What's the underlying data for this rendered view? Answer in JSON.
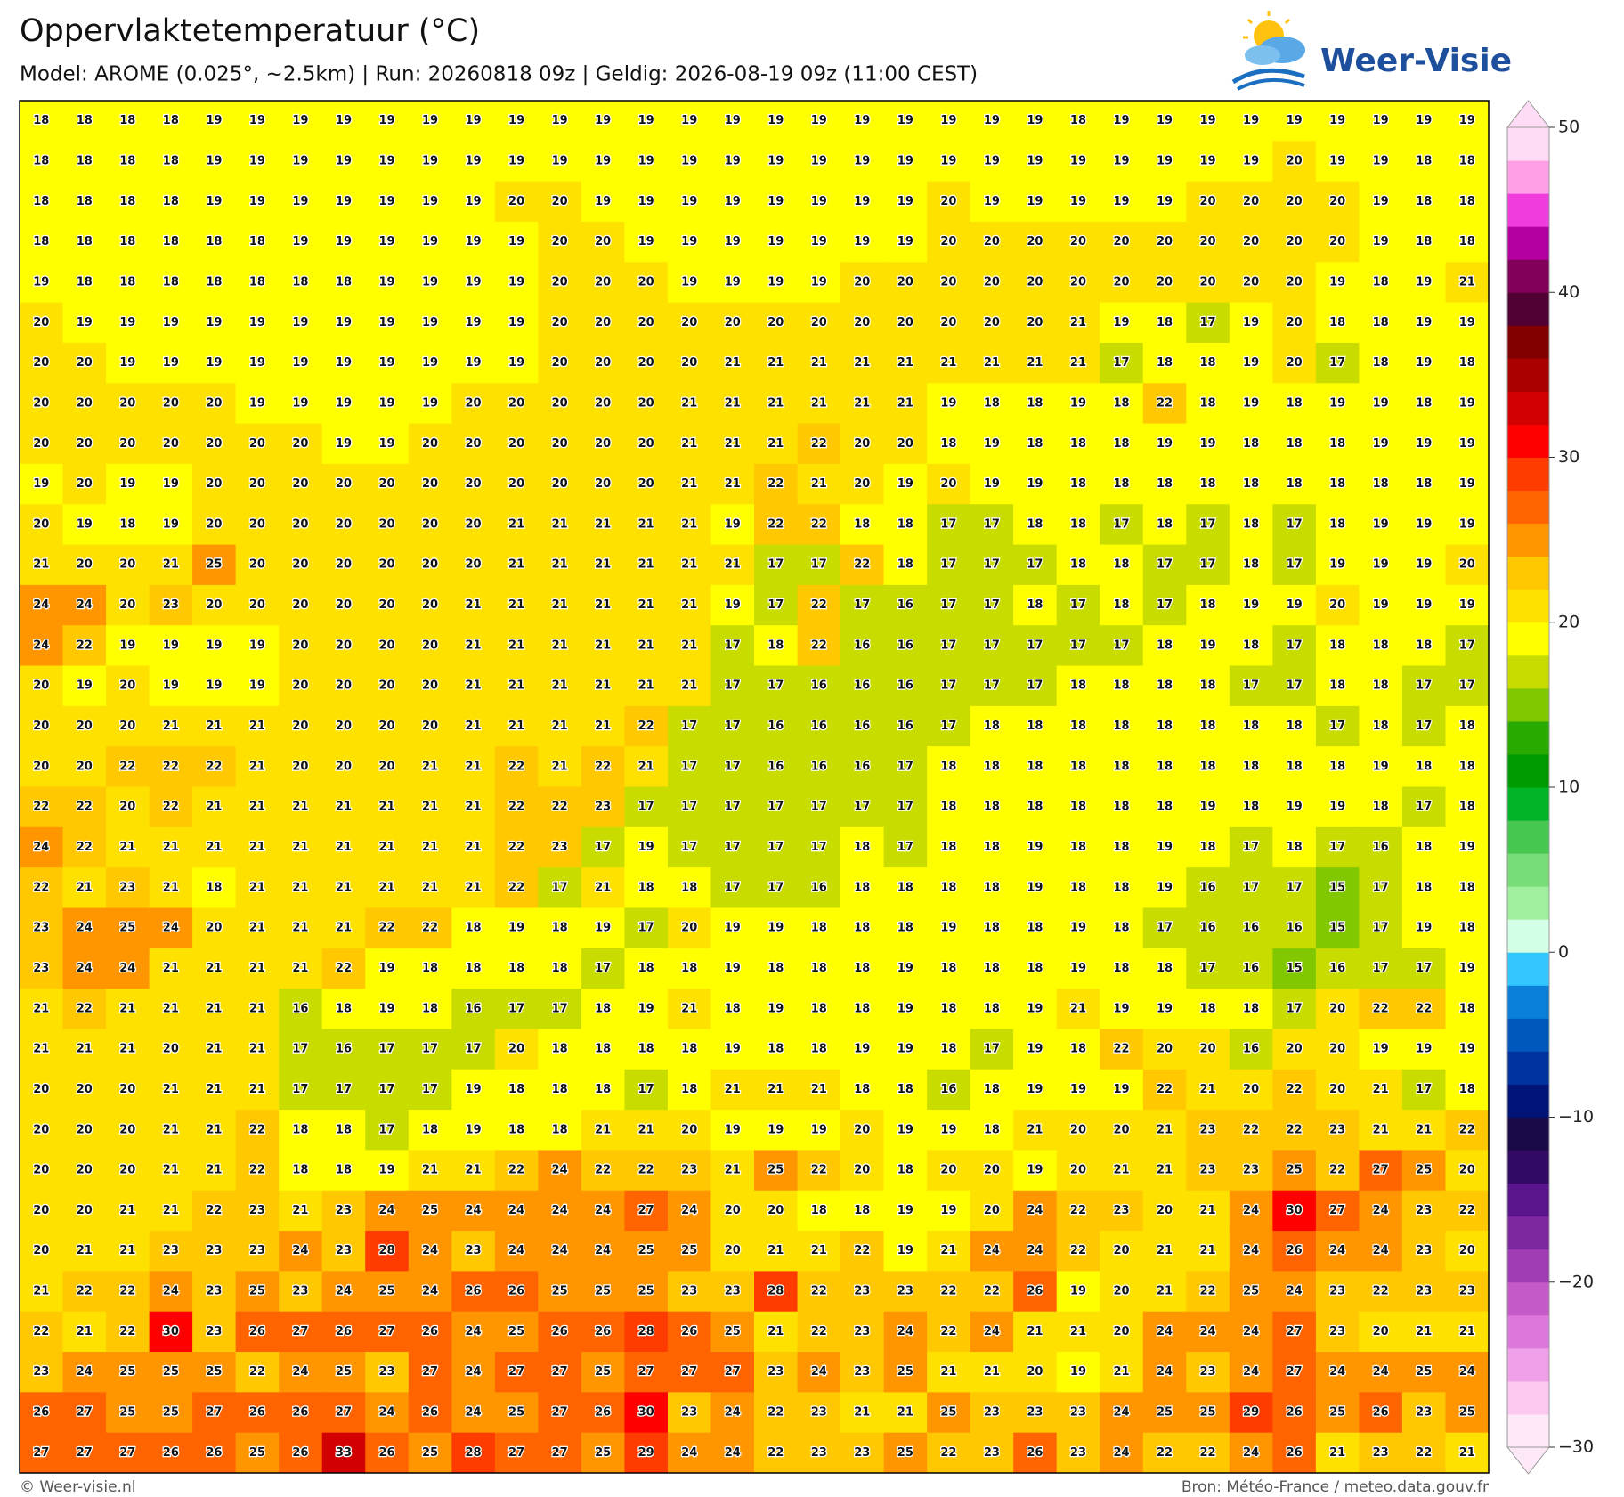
{
  "header": {
    "title": "Oppervlaktetemperatuur (°C)",
    "subtitle": "Model: AROME (0.025°, ~2.5km)  |  Run: 20260818 09z  |  Geldig: 2026-08-19 09z (11:00 CEST)"
  },
  "logo": {
    "text": "Weer-Visie"
  },
  "grid": {
    "rows": [
      [
        18,
        18,
        18,
        18,
        19,
        19,
        19,
        19,
        19,
        19,
        19,
        19,
        19,
        19,
        19,
        19,
        19,
        19,
        19,
        19,
        19,
        19,
        19,
        19,
        18,
        19,
        19,
        19,
        19,
        19,
        19,
        19,
        19,
        19
      ],
      [
        18,
        18,
        18,
        18,
        19,
        19,
        19,
        19,
        19,
        19,
        19,
        19,
        19,
        19,
        19,
        19,
        19,
        19,
        19,
        19,
        19,
        19,
        19,
        19,
        19,
        19,
        19,
        19,
        19,
        20,
        19,
        19,
        18,
        18
      ],
      [
        18,
        18,
        18,
        18,
        19,
        19,
        19,
        19,
        19,
        19,
        19,
        20,
        20,
        19,
        19,
        19,
        19,
        19,
        19,
        19,
        19,
        20,
        19,
        19,
        19,
        19,
        19,
        20,
        20,
        20,
        20,
        19,
        18,
        18
      ],
      [
        18,
        18,
        18,
        18,
        18,
        18,
        19,
        19,
        19,
        19,
        19,
        19,
        20,
        20,
        19,
        19,
        19,
        19,
        19,
        19,
        19,
        20,
        20,
        20,
        20,
        20,
        20,
        20,
        20,
        20,
        20,
        19,
        18,
        18
      ],
      [
        19,
        18,
        18,
        18,
        18,
        18,
        18,
        18,
        19,
        19,
        19,
        19,
        20,
        20,
        20,
        19,
        19,
        19,
        19,
        20,
        20,
        20,
        20,
        20,
        20,
        20,
        20,
        20,
        20,
        20,
        19,
        18,
        19,
        21
      ],
      [
        20,
        19,
        19,
        19,
        19,
        19,
        19,
        19,
        19,
        19,
        19,
        19,
        20,
        20,
        20,
        20,
        20,
        20,
        20,
        20,
        20,
        20,
        20,
        20,
        21,
        19,
        18,
        17,
        19,
        20,
        18,
        18,
        19,
        19
      ],
      [
        20,
        20,
        19,
        19,
        19,
        19,
        19,
        19,
        19,
        19,
        19,
        19,
        20,
        20,
        20,
        20,
        21,
        21,
        21,
        21,
        21,
        21,
        21,
        21,
        21,
        17,
        18,
        18,
        19,
        20,
        17,
        18,
        19,
        18
      ],
      [
        20,
        20,
        20,
        20,
        20,
        19,
        19,
        19,
        19,
        19,
        20,
        20,
        20,
        20,
        20,
        21,
        21,
        21,
        21,
        21,
        21,
        19,
        18,
        18,
        19,
        18,
        22,
        18,
        19,
        18,
        19,
        19,
        18,
        19
      ],
      [
        20,
        20,
        20,
        20,
        20,
        20,
        20,
        19,
        19,
        20,
        20,
        20,
        20,
        20,
        20,
        21,
        21,
        21,
        22,
        20,
        20,
        18,
        19,
        18,
        18,
        18,
        19,
        19,
        18,
        18,
        18,
        19,
        19,
        19
      ],
      [
        19,
        20,
        19,
        19,
        20,
        20,
        20,
        20,
        20,
        20,
        20,
        20,
        20,
        20,
        20,
        21,
        21,
        22,
        21,
        20,
        19,
        20,
        19,
        19,
        18,
        18,
        18,
        18,
        18,
        18,
        18,
        18,
        18,
        19
      ],
      [
        20,
        19,
        18,
        19,
        20,
        20,
        20,
        20,
        20,
        20,
        20,
        21,
        21,
        21,
        21,
        21,
        19,
        22,
        22,
        18,
        18,
        17,
        17,
        18,
        18,
        17,
        18,
        17,
        18,
        17,
        18,
        19,
        19,
        19
      ],
      [
        21,
        20,
        20,
        21,
        25,
        20,
        20,
        20,
        20,
        20,
        20,
        21,
        21,
        21,
        21,
        21,
        21,
        17,
        17,
        22,
        18,
        17,
        17,
        17,
        18,
        18,
        17,
        17,
        18,
        17,
        19,
        19,
        19,
        20
      ],
      [
        24,
        24,
        20,
        23,
        20,
        20,
        20,
        20,
        20,
        20,
        21,
        21,
        21,
        21,
        21,
        21,
        19,
        17,
        22,
        17,
        16,
        17,
        17,
        18,
        17,
        18,
        17,
        18,
        19,
        19,
        20,
        19,
        19,
        19
      ],
      [
        24,
        22,
        19,
        19,
        19,
        19,
        20,
        20,
        20,
        20,
        21,
        21,
        21,
        21,
        21,
        21,
        17,
        18,
        22,
        16,
        16,
        17,
        17,
        17,
        17,
        17,
        18,
        19,
        18,
        17,
        18,
        18,
        18,
        17
      ],
      [
        20,
        19,
        20,
        19,
        19,
        19,
        20,
        20,
        20,
        20,
        21,
        21,
        21,
        21,
        21,
        21,
        17,
        17,
        16,
        16,
        16,
        17,
        17,
        17,
        18,
        18,
        18,
        18,
        17,
        17,
        18,
        18,
        17,
        17
      ],
      [
        20,
        20,
        20,
        21,
        21,
        21,
        20,
        20,
        20,
        20,
        21,
        21,
        21,
        21,
        22,
        17,
        17,
        16,
        16,
        16,
        16,
        17,
        18,
        18,
        18,
        18,
        18,
        18,
        18,
        18,
        17,
        18,
        17,
        18
      ],
      [
        20,
        20,
        22,
        22,
        22,
        21,
        20,
        20,
        20,
        21,
        21,
        22,
        21,
        22,
        21,
        17,
        17,
        16,
        16,
        16,
        17,
        18,
        18,
        18,
        18,
        18,
        18,
        18,
        18,
        18,
        18,
        19,
        18,
        18
      ],
      [
        22,
        22,
        20,
        22,
        21,
        21,
        21,
        21,
        21,
        21,
        21,
        22,
        22,
        23,
        17,
        17,
        17,
        17,
        17,
        17,
        17,
        18,
        18,
        18,
        18,
        18,
        18,
        19,
        18,
        19,
        19,
        18,
        17,
        18
      ],
      [
        24,
        22,
        21,
        21,
        21,
        21,
        21,
        21,
        21,
        21,
        21,
        22,
        23,
        17,
        19,
        17,
        17,
        17,
        17,
        18,
        17,
        18,
        18,
        19,
        18,
        18,
        19,
        18,
        17,
        18,
        17,
        16,
        18,
        19
      ],
      [
        22,
        21,
        23,
        21,
        18,
        21,
        21,
        21,
        21,
        21,
        21,
        22,
        17,
        21,
        18,
        18,
        17,
        17,
        16,
        18,
        18,
        18,
        18,
        19,
        18,
        18,
        19,
        16,
        17,
        17,
        15,
        17,
        18,
        18
      ],
      [
        23,
        24,
        25,
        24,
        20,
        21,
        21,
        21,
        22,
        22,
        18,
        19,
        18,
        19,
        17,
        20,
        19,
        19,
        18,
        18,
        18,
        19,
        18,
        18,
        19,
        18,
        17,
        16,
        16,
        16,
        15,
        17,
        19,
        18
      ],
      [
        23,
        24,
        24,
        21,
        21,
        21,
        21,
        22,
        19,
        18,
        18,
        18,
        18,
        17,
        18,
        18,
        19,
        18,
        18,
        18,
        19,
        18,
        18,
        18,
        19,
        18,
        18,
        17,
        16,
        15,
        16,
        17,
        17,
        19
      ],
      [
        21,
        22,
        21,
        21,
        21,
        21,
        16,
        18,
        19,
        18,
        16,
        17,
        17,
        18,
        19,
        21,
        18,
        19,
        18,
        18,
        19,
        18,
        18,
        19,
        21,
        19,
        19,
        18,
        18,
        17,
        20,
        22,
        22,
        18
      ],
      [
        21,
        21,
        21,
        20,
        21,
        21,
        17,
        16,
        17,
        17,
        17,
        20,
        18,
        18,
        18,
        18,
        19,
        18,
        18,
        19,
        19,
        18,
        17,
        19,
        18,
        22,
        20,
        20,
        16,
        20,
        20,
        19,
        19,
        19
      ],
      [
        20,
        20,
        20,
        21,
        21,
        21,
        17,
        17,
        17,
        17,
        19,
        18,
        18,
        18,
        17,
        18,
        21,
        21,
        21,
        18,
        18,
        16,
        18,
        19,
        19,
        19,
        22,
        21,
        20,
        22,
        20,
        21,
        17,
        18
      ],
      [
        20,
        20,
        20,
        21,
        21,
        22,
        18,
        18,
        17,
        18,
        19,
        18,
        18,
        21,
        21,
        20,
        19,
        19,
        19,
        20,
        19,
        19,
        18,
        21,
        20,
        20,
        21,
        23,
        22,
        22,
        23,
        21,
        21,
        22
      ],
      [
        20,
        20,
        20,
        21,
        21,
        22,
        18,
        18,
        19,
        21,
        21,
        22,
        24,
        22,
        22,
        23,
        21,
        25,
        22,
        20,
        18,
        20,
        20,
        19,
        20,
        21,
        21,
        23,
        23,
        25,
        22,
        27,
        25,
        20
      ],
      [
        20,
        20,
        21,
        21,
        22,
        23,
        21,
        23,
        24,
        25,
        24,
        24,
        24,
        24,
        27,
        24,
        20,
        20,
        18,
        18,
        19,
        19,
        20,
        24,
        22,
        23,
        20,
        21,
        24,
        30,
        27,
        24,
        23,
        22
      ],
      [
        20,
        21,
        21,
        23,
        23,
        23,
        24,
        23,
        28,
        24,
        23,
        24,
        24,
        24,
        25,
        25,
        20,
        21,
        21,
        22,
        19,
        21,
        24,
        24,
        22,
        20,
        21,
        21,
        24,
        26,
        24,
        24,
        23,
        20
      ],
      [
        21,
        22,
        22,
        24,
        23,
        25,
        23,
        24,
        25,
        24,
        26,
        26,
        25,
        25,
        25,
        23,
        23,
        28,
        22,
        23,
        23,
        22,
        22,
        26,
        19,
        20,
        21,
        22,
        25,
        24,
        23,
        22,
        23,
        23
      ],
      [
        22,
        21,
        22,
        30,
        23,
        26,
        27,
        26,
        27,
        26,
        24,
        25,
        26,
        26,
        28,
        26,
        25,
        21,
        22,
        23,
        24,
        22,
        24,
        21,
        21,
        20,
        24,
        24,
        24,
        27,
        23,
        20,
        21,
        21
      ],
      [
        23,
        24,
        25,
        25,
        25,
        22,
        24,
        25,
        23,
        27,
        24,
        27,
        27,
        25,
        27,
        27,
        27,
        23,
        24,
        23,
        25,
        21,
        21,
        20,
        19,
        21,
        24,
        23,
        24,
        27,
        24,
        24,
        25,
        24
      ],
      [
        26,
        27,
        25,
        25,
        27,
        26,
        26,
        27,
        24,
        26,
        24,
        25,
        27,
        26,
        30,
        23,
        24,
        22,
        23,
        21,
        21,
        25,
        23,
        23,
        23,
        24,
        25,
        25,
        29,
        26,
        25,
        26,
        23,
        25
      ],
      [
        27,
        27,
        27,
        26,
        26,
        25,
        26,
        33,
        26,
        25,
        28,
        27,
        27,
        25,
        29,
        24,
        24,
        22,
        23,
        23,
        25,
        22,
        23,
        26,
        23,
        24,
        22,
        22,
        24,
        26,
        21,
        23,
        22,
        21
      ]
    ]
  },
  "colorbar": {
    "ticks": [
      50,
      40,
      30,
      20,
      10,
      0,
      {
        "value": -10,
        "label": "−10"
      },
      {
        "value": -20,
        "label": "−20"
      },
      {
        "value": -30,
        "label": "−30"
      }
    ],
    "colors": [
      "#fde8f8",
      "#fcc8f0",
      "#f0a0e8",
      "#dc78dc",
      "#c35ac8",
      "#a03cb4",
      "#7d28a0",
      "#5a148c",
      "#320a64",
      "#1a0a46",
      "#001478",
      "#0032a0",
      "#0058bc",
      "#0a80d8",
      "#32c8ff",
      "#d2ffe6",
      "#a0f0a0",
      "#78dc78",
      "#46c850",
      "#00b428",
      "#009b00",
      "#28aa00",
      "#82c800",
      "#c8dc00",
      "#ffff00",
      "#ffe100",
      "#ffc800",
      "#ff9600",
      "#ff6400",
      "#ff3c00",
      "#ff0000",
      "#d20000",
      "#aa0000",
      "#820000",
      "#500032",
      "#82005a",
      "#b400a0",
      "#f03cdc",
      "#ffa0e6",
      "#ffdcf5"
    ]
  },
  "footer": {
    "left": "© Weer-visie.nl",
    "right": "Bron: Météo-France / meteo.data.gouv.fr"
  }
}
